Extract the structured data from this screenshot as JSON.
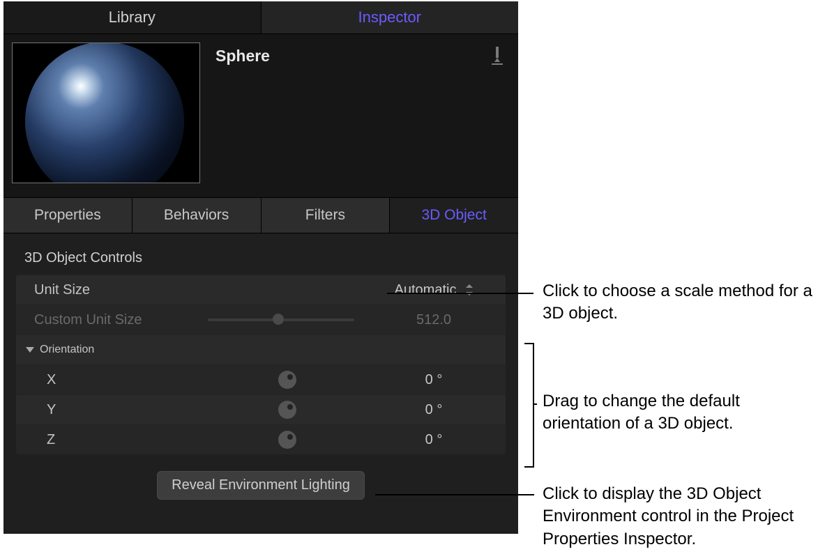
{
  "top_tabs": {
    "library": "Library",
    "inspector": "Inspector"
  },
  "object_title": "Sphere",
  "sub_tabs": {
    "properties": "Properties",
    "behaviors": "Behaviors",
    "filters": "Filters",
    "object3d": "3D Object"
  },
  "section": "3D Object Controls",
  "unit_size": {
    "label": "Unit Size",
    "value": "Automatic"
  },
  "custom_unit": {
    "label": "Custom Unit Size",
    "value": "512.0",
    "slider_pos": 0.48
  },
  "orientation": {
    "label": "Orientation",
    "x": {
      "label": "X",
      "value": "0 °"
    },
    "y": {
      "label": "Y",
      "value": "0 °"
    },
    "z": {
      "label": "Z",
      "value": "0 °"
    }
  },
  "reveal_button": "Reveal Environment Lighting",
  "callouts": {
    "unit": "Click to choose a scale method for a 3D object.",
    "orient": "Drag to change the default orientation of a 3D object.",
    "reveal": "Click to display the 3D Object Environment control in the Project Properties Inspector."
  },
  "colors": {
    "accent": "#6a5cff",
    "panel_bg": "#1f1f1f",
    "row_bg": "#2a2a2a"
  }
}
